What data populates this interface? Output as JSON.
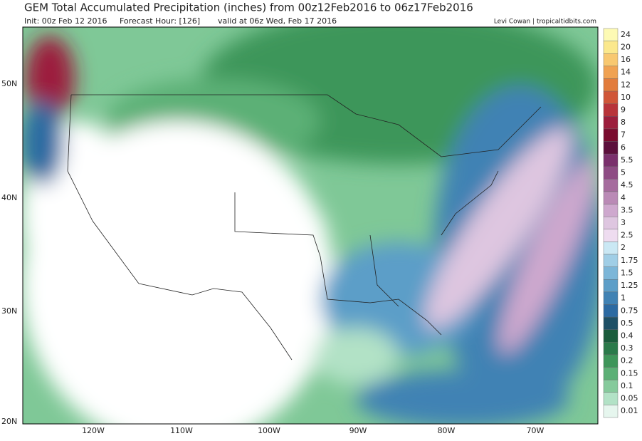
{
  "header": {
    "title": "GEM Total Accumulated Precipitation (inches) from 00z12Feb2016 to 06z17Feb2016",
    "init": "Init: 00z Feb 12 2016",
    "forecast_hour": "Forecast Hour: [126]",
    "valid": "valid at 06z Wed, Feb 17 2016",
    "credit": "Levi Cowan | tropicaltidbits.com"
  },
  "map": {
    "lat_labels": [
      "50N",
      "40N",
      "30N",
      "20N"
    ],
    "lon_labels": [
      "120W",
      "110W",
      "100W",
      "90W",
      "80W",
      "70W"
    ]
  },
  "legend": {
    "labels": [
      "24",
      "20",
      "16",
      "14",
      "12",
      "10",
      "9",
      "8",
      "7",
      "6",
      "5.5",
      "5",
      "4.5",
      "4",
      "3.5",
      "3",
      "2.5",
      "2",
      "1.75",
      "1.5",
      "1.25",
      "1",
      "0.75",
      "0.5",
      "0.4",
      "0.3",
      "0.2",
      "0.15",
      "0.1",
      "0.05",
      "0.01"
    ],
    "colors": [
      "#fdfab4",
      "#fbe88c",
      "#f8c870",
      "#f0a252",
      "#e27c3c",
      "#d05638",
      "#b8343a",
      "#9c1e3c",
      "#7a0c2e",
      "#5c103c",
      "#7a306c",
      "#8e4c84",
      "#a66c9e",
      "#ba8ab6",
      "#cea8ce",
      "#dec6e0",
      "#eedcf0",
      "#cae8f4",
      "#a0cee6",
      "#7cb6d8",
      "#5c9ec8",
      "#4082b4",
      "#2c6aa2",
      "#1e5066",
      "#1a5c3c",
      "#2a7a4a",
      "#3e965a",
      "#5cb076",
      "#86ca9c",
      "#b2e2c6",
      "#e6f6ee"
    ]
  }
}
